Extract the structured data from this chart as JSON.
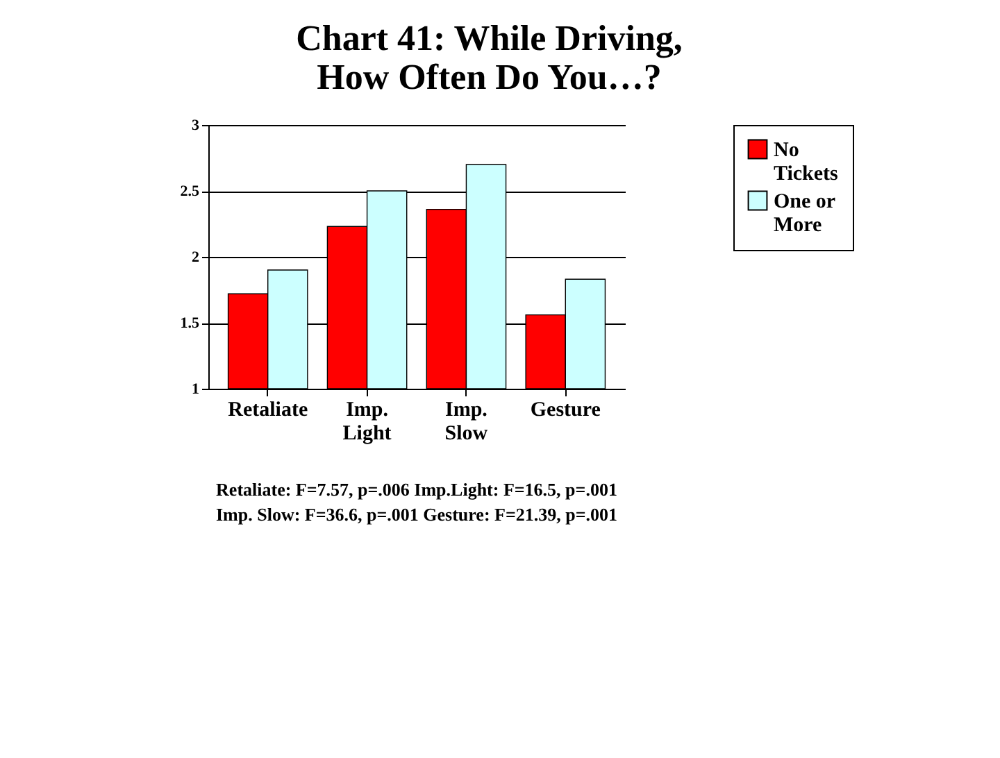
{
  "chart_data": {
    "type": "bar",
    "title": "Chart 41: While Driving, How Often Do You…?",
    "categories": [
      "Retaliate",
      "Imp. Light",
      "Imp. Slow",
      "Gesture"
    ],
    "series": [
      {
        "name": "No Tickets",
        "color": "#ff0000",
        "values": [
          1.72,
          2.23,
          2.36,
          1.56
        ]
      },
      {
        "name": "One or More",
        "color": "#ccffff",
        "values": [
          1.9,
          2.5,
          2.7,
          1.83
        ]
      }
    ],
    "ylim": [
      1,
      3
    ],
    "yticks": [
      1,
      1.5,
      2,
      2.5,
      3
    ],
    "grid": "y",
    "legend": "right",
    "annotations": [
      "Retaliate: F=7.57, p=.006 Imp.Light: F=16.5, p=.001",
      "Imp. Slow: F=36.6, p=.001 Gesture: F=21.39, p=.001"
    ]
  }
}
